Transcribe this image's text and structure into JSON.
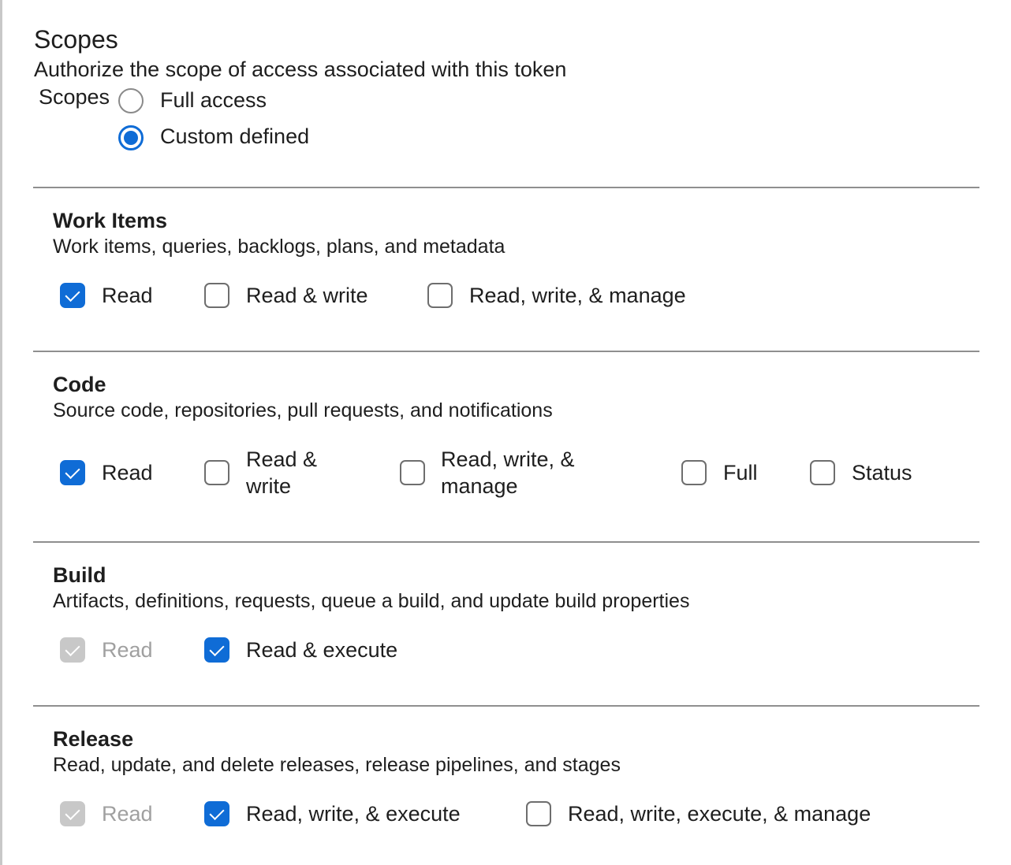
{
  "header": {
    "title": "Scopes",
    "subtitle": "Authorize the scope of access associated with this token",
    "scopes_label": "Scopes"
  },
  "scope_mode": {
    "options": [
      {
        "label": "Full access",
        "selected": false
      },
      {
        "label": "Custom defined",
        "selected": true
      }
    ]
  },
  "sections": [
    {
      "title": "Work Items",
      "description": "Work items, queries, backlogs, plans, and metadata",
      "options": [
        {
          "label": "Read",
          "state": "checked"
        },
        {
          "label": "Read & write",
          "state": "unchecked"
        },
        {
          "label": "Read, write, & manage",
          "state": "unchecked"
        }
      ]
    },
    {
      "title": "Code",
      "description": "Source code, repositories, pull requests, and notifications",
      "options": [
        {
          "label": "Read",
          "state": "checked"
        },
        {
          "label": "Read & write",
          "state": "unchecked"
        },
        {
          "label": "Read, write, & manage",
          "state": "unchecked"
        },
        {
          "label": "Full",
          "state": "unchecked"
        },
        {
          "label": "Status",
          "state": "unchecked"
        }
      ]
    },
    {
      "title": "Build",
      "description": "Artifacts, definitions, requests, queue a build, and update build properties",
      "options": [
        {
          "label": "Read",
          "state": "disabled-checked"
        },
        {
          "label": "Read & execute",
          "state": "checked"
        }
      ]
    },
    {
      "title": "Release",
      "description": "Read, update, and delete releases, release pipelines, and stages",
      "options": [
        {
          "label": "Read",
          "state": "disabled-checked"
        },
        {
          "label": "Read, write, & execute",
          "state": "checked"
        },
        {
          "label": "Read, write, execute, & manage",
          "state": "unchecked"
        }
      ]
    }
  ],
  "colors": {
    "accent": "#0f6cd6",
    "disabled": "#c8c8c8",
    "divider": "#8f8f8f"
  }
}
